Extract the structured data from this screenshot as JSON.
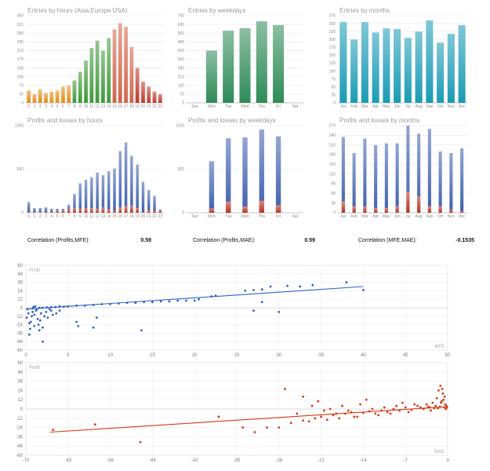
{
  "chart_data": [
    {
      "type": "bar",
      "title": "Entries by hours (Asia,Europe USA)",
      "categories": [
        "0",
        "1",
        "2",
        "3",
        "4",
        "5",
        "6",
        "7",
        "8",
        "9",
        "10",
        "11",
        "12",
        "13",
        "14",
        "15",
        "16",
        "17",
        "18",
        "19",
        "20",
        "21",
        "22",
        "23"
      ],
      "values": [
        50,
        35,
        55,
        40,
        45,
        50,
        65,
        70,
        90,
        125,
        170,
        220,
        250,
        210,
        260,
        295,
        320,
        305,
        225,
        140,
        85,
        65,
        45,
        35
      ],
      "ylim": [
        0,
        350
      ],
      "yticks": [
        0,
        35,
        70,
        105,
        140,
        175,
        210,
        245,
        280,
        315,
        350
      ],
      "colors": [
        "#e38c1a",
        "#e38c1a",
        "#e38c1a",
        "#e38c1a",
        "#e38c1a",
        "#e38c1a",
        "#e38c1a",
        "#e38c1a",
        "#3f9a3a",
        "#3f9a3a",
        "#3f9a3a",
        "#3f9a3a",
        "#3f9a3a",
        "#3f9a3a",
        "#3f9a3a",
        "#d0654a",
        "#d0654a",
        "#d0654a",
        "#d0654a",
        "#c0392b",
        "#c0392b",
        "#c0392b",
        "#c0392b",
        "#c0392b"
      ]
    },
    {
      "type": "bar",
      "title": "Entries by weekdays",
      "categories": [
        "Sun",
        "Mon",
        "Tue",
        "Wed",
        "Thu",
        "Fri",
        "Sat"
      ],
      "values": [
        0,
        420,
        580,
        600,
        655,
        625,
        0
      ],
      "ylim": [
        0,
        700
      ],
      "yticks": [
        0,
        70,
        140,
        210,
        280,
        350,
        420,
        490,
        560,
        630,
        700
      ],
      "colors": [
        "#2e8b57"
      ]
    },
    {
      "type": "bar",
      "title": "Entries by months",
      "categories": [
        "Jan",
        "Feb",
        "Mar",
        "Apr",
        "May",
        "Jun",
        "Jul",
        "Aug",
        "Sep",
        "Oct",
        "Nov",
        "Dec"
      ],
      "values": [
        255,
        200,
        255,
        222,
        235,
        233,
        205,
        225,
        260,
        190,
        218,
        245
      ],
      "ylim": [
        0,
        275
      ],
      "yticks": [
        0,
        25,
        50,
        75,
        100,
        125,
        150,
        175,
        200,
        225,
        250,
        275
      ],
      "colors": [
        "#1a9bb5"
      ]
    },
    {
      "type": "bar",
      "title": "Profits and losses by hours",
      "categories": [
        "0",
        "1",
        "2",
        "3",
        "4",
        "5",
        "6",
        "7",
        "8",
        "9",
        "10",
        "11",
        "12",
        "13",
        "14",
        "15",
        "16",
        "17",
        "18",
        "19",
        "20",
        "21",
        "22",
        "23"
      ],
      "series": [
        {
          "values": [
            160,
            70,
            70,
            80,
            60,
            60,
            60,
            120,
            280,
            440,
            490,
            530,
            600,
            560,
            620,
            660,
            920,
            1050,
            850,
            720,
            460,
            340,
            250,
            50
          ]
        },
        {
          "values": [
            10,
            10,
            10,
            10,
            10,
            20,
            30,
            50,
            70,
            60,
            70,
            70,
            60,
            80,
            50,
            30,
            80,
            100,
            110,
            70,
            10,
            40,
            30,
            30
          ]
        }
      ],
      "ylim": [
        0,
        1300
      ],
      "yticks": [
        0,
        650,
        1300
      ],
      "colors": [
        "#3e5fae",
        "#b8321e"
      ]
    },
    {
      "type": "bar",
      "title": "Profits and losses by weekdays",
      "categories": [
        "Sun",
        "Mon",
        "Tue",
        "Wed",
        "Thu",
        "Fri",
        "Sat"
      ],
      "series": [
        {
          "values": [
            0,
            650,
            940,
            950,
            1050,
            965,
            0
          ]
        },
        {
          "values": [
            0,
            55,
            140,
            80,
            150,
            95,
            0
          ]
        }
      ],
      "ylim": [
        0,
        1100
      ],
      "yticks": [
        0,
        550,
        1100
      ],
      "colors": [
        "#3e5fae",
        "#b8321e"
      ]
    },
    {
      "type": "bar",
      "title": "Profits and losses by months",
      "categories": [
        "Jan",
        "Feb",
        "Mar",
        "Apr",
        "May",
        "Jun",
        "Jul",
        "Aug",
        "Sep",
        "Oct",
        "Nov",
        "Dec"
      ],
      "series": [
        {
          "values": [
            235,
            185,
            230,
            210,
            215,
            215,
            270,
            245,
            260,
            190,
            185,
            200
          ]
        },
        {
          "values": [
            35,
            20,
            20,
            15,
            15,
            20,
            65,
            50,
            20,
            20,
            10,
            5
          ]
        }
      ],
      "ylim": [
        0,
        270
      ],
      "yticks": [
        0,
        30,
        60,
        90,
        120,
        150,
        180,
        210,
        240,
        270
      ],
      "colors": [
        "#3e5fae",
        "#b8321e"
      ]
    },
    {
      "type": "scatter",
      "title": "",
      "series_label": "Profit",
      "xlabel": "MFE",
      "xlim": [
        0,
        50
      ],
      "ylim": [
        -60,
        60
      ],
      "xticks": [
        0,
        5,
        10,
        15,
        20,
        25,
        30,
        35,
        40,
        45,
        50
      ],
      "yticks": [
        -60,
        -48,
        -36,
        -24,
        -12,
        0,
        12,
        24,
        36,
        48,
        60
      ],
      "trend": [
        [
          0,
          -2
        ],
        [
          40,
          30
        ]
      ],
      "points": [
        [
          0.2,
          -2
        ],
        [
          0.3,
          -8
        ],
        [
          0.1,
          -14
        ],
        [
          0.4,
          -22
        ],
        [
          0.6,
          -20
        ],
        [
          0.7,
          -12
        ],
        [
          0.8,
          -6
        ],
        [
          1,
          -10
        ],
        [
          1.2,
          -4
        ],
        [
          1.4,
          -16
        ],
        [
          1.5,
          -24
        ],
        [
          1.7,
          -18
        ],
        [
          2,
          -28
        ],
        [
          2.2,
          -12
        ],
        [
          2.4,
          -6
        ],
        [
          2.6,
          -14
        ],
        [
          1.1,
          2
        ],
        [
          1.3,
          -2
        ],
        [
          0.9,
          1
        ],
        [
          1.8,
          -8
        ],
        [
          2.8,
          -2
        ],
        [
          3,
          -4
        ],
        [
          0.5,
          -30
        ],
        [
          1,
          -26
        ],
        [
          0.4,
          -38
        ],
        [
          2,
          -48
        ],
        [
          1.6,
          -32
        ],
        [
          3.2,
          -10
        ],
        [
          3.6,
          -8
        ],
        [
          4,
          -4
        ],
        [
          6,
          -20
        ],
        [
          6.2,
          -26
        ],
        [
          8,
          -28
        ],
        [
          8.4,
          -14
        ],
        [
          13.7,
          -32
        ],
        [
          2,
          0
        ],
        [
          3,
          1
        ],
        [
          4,
          2
        ],
        [
          5,
          2
        ],
        [
          6,
          3
        ],
        [
          7,
          3
        ],
        [
          8,
          4
        ],
        [
          9,
          5
        ],
        [
          10,
          5
        ],
        [
          11,
          6
        ],
        [
          12,
          7
        ],
        [
          13,
          7
        ],
        [
          14,
          8
        ],
        [
          15,
          8
        ],
        [
          16,
          9
        ],
        [
          17,
          9
        ],
        [
          18,
          10
        ],
        [
          19,
          10
        ],
        [
          20,
          10
        ],
        [
          20.5,
          12
        ],
        [
          22,
          16
        ],
        [
          22.5,
          17
        ],
        [
          26,
          24
        ],
        [
          27,
          25
        ],
        [
          28,
          26
        ],
        [
          29,
          30
        ],
        [
          31,
          31
        ],
        [
          32.5,
          30
        ],
        [
          34,
          32
        ],
        [
          38,
          36
        ],
        [
          40,
          25
        ],
        [
          27,
          -4
        ],
        [
          28,
          8
        ],
        [
          30,
          -6
        ],
        [
          0.8,
          -1
        ],
        [
          1.6,
          0
        ],
        [
          2.5,
          0.5
        ],
        [
          3.5,
          1
        ],
        [
          4.5,
          1.5
        ]
      ]
    },
    {
      "type": "scatter",
      "title": "",
      "series_label": "Profit",
      "xlabel": "MAE",
      "xlim": [
        -70,
        0
      ],
      "ylim": [
        -60,
        60
      ],
      "xticks": [
        -70,
        -63,
        -56,
        -49,
        -42,
        -35,
        -28,
        -21,
        -14,
        -7,
        0
      ],
      "yticks": [
        -60,
        -48,
        -36,
        -24,
        -12,
        0,
        12,
        24,
        36,
        48,
        60
      ],
      "trend": [
        [
          -66,
          -30
        ],
        [
          0,
          3
        ]
      ],
      "points": [
        [
          -65.5,
          -27
        ],
        [
          -58.5,
          -20
        ],
        [
          -51,
          -43
        ],
        [
          -38,
          -10
        ],
        [
          -34,
          -24
        ],
        [
          -32,
          -30
        ],
        [
          -30,
          -24
        ],
        [
          -28,
          -24
        ],
        [
          -26,
          -18
        ],
        [
          -25,
          -6
        ],
        [
          -24,
          -15
        ],
        [
          -23,
          -16
        ],
        [
          -22,
          -12
        ],
        [
          -21,
          -10
        ],
        [
          -20,
          -14
        ],
        [
          -19,
          -8
        ],
        [
          -18,
          -12
        ],
        [
          -17,
          -6
        ],
        [
          -16,
          -4
        ],
        [
          -15,
          -10
        ],
        [
          -14,
          -5
        ],
        [
          -13,
          -3
        ],
        [
          -12,
          -6
        ],
        [
          -11,
          -2
        ],
        [
          -10,
          -4
        ],
        [
          -9,
          0
        ],
        [
          -8,
          -2
        ],
        [
          -7,
          2
        ],
        [
          -6,
          -1
        ],
        [
          -5,
          4
        ],
        [
          -4,
          0
        ],
        [
          -3.5,
          6
        ],
        [
          -3,
          2
        ],
        [
          -2.5,
          8
        ],
        [
          -2,
          4
        ],
        [
          -1.8,
          14
        ],
        [
          -1.5,
          24
        ],
        [
          -1.2,
          30
        ],
        [
          -1,
          10
        ],
        [
          -0.8,
          20
        ],
        [
          -0.6,
          2
        ],
        [
          -0.5,
          16
        ],
        [
          -0.4,
          6
        ],
        [
          -0.3,
          0
        ],
        [
          -0.2,
          4
        ],
        [
          -0.1,
          2
        ],
        [
          -0.7,
          12
        ],
        [
          -0.9,
          26
        ],
        [
          -1.1,
          8
        ],
        [
          -1.3,
          3
        ],
        [
          -1.6,
          1
        ],
        [
          -2.2,
          1
        ],
        [
          -2.8,
          -2
        ],
        [
          -3.2,
          3
        ],
        [
          -4.5,
          2
        ],
        [
          -5.5,
          6
        ],
        [
          -6.5,
          -4
        ],
        [
          -7.5,
          8
        ],
        [
          -8.5,
          4
        ],
        [
          -9.5,
          -6
        ],
        [
          -10.5,
          2
        ],
        [
          -11.5,
          -8
        ],
        [
          -12.5,
          0
        ],
        [
          -13.5,
          12
        ],
        [
          -14.5,
          6
        ],
        [
          -16.5,
          -2
        ],
        [
          -17.5,
          4
        ],
        [
          -18.5,
          -6
        ],
        [
          -19.5,
          0
        ],
        [
          -21.5,
          10
        ],
        [
          -22.5,
          4
        ],
        [
          -24,
          16
        ],
        [
          -27,
          26
        ],
        [
          -20.5,
          -2
        ],
        [
          -15.5,
          -10
        ]
      ]
    }
  ],
  "correlations": [
    {
      "label": "Correlation (Profits,MFE):",
      "value": "0.59"
    },
    {
      "label": "Correlation (Profits,MAE):",
      "value": "0.59"
    },
    {
      "label": "Correlation (MFE,MAE):",
      "value": "-0.1535"
    }
  ]
}
